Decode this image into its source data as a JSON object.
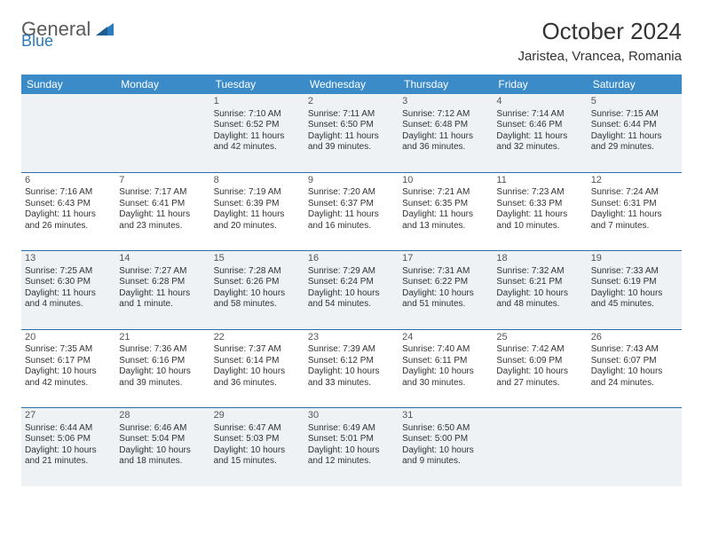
{
  "brand": {
    "main": "General",
    "sub": "Blue"
  },
  "title": "October 2024",
  "location": "Jaristea, Vrancea, Romania",
  "colors": {
    "header_bg": "#3b8bc9",
    "header_text": "#ffffff",
    "divider": "#2b6fa8",
    "shade_bg": "#eef2f5",
    "text": "#333333",
    "brand_main": "#5a5a5a",
    "brand_sub": "#2b7bbf"
  },
  "dows": [
    "Sunday",
    "Monday",
    "Tuesday",
    "Wednesday",
    "Thursday",
    "Friday",
    "Saturday"
  ],
  "weeks": [
    [
      null,
      null,
      {
        "n": "1",
        "sr": "Sunrise: 7:10 AM",
        "ss": "Sunset: 6:52 PM",
        "d1": "Daylight: 11 hours",
        "d2": "and 42 minutes."
      },
      {
        "n": "2",
        "sr": "Sunrise: 7:11 AM",
        "ss": "Sunset: 6:50 PM",
        "d1": "Daylight: 11 hours",
        "d2": "and 39 minutes."
      },
      {
        "n": "3",
        "sr": "Sunrise: 7:12 AM",
        "ss": "Sunset: 6:48 PM",
        "d1": "Daylight: 11 hours",
        "d2": "and 36 minutes."
      },
      {
        "n": "4",
        "sr": "Sunrise: 7:14 AM",
        "ss": "Sunset: 6:46 PM",
        "d1": "Daylight: 11 hours",
        "d2": "and 32 minutes."
      },
      {
        "n": "5",
        "sr": "Sunrise: 7:15 AM",
        "ss": "Sunset: 6:44 PM",
        "d1": "Daylight: 11 hours",
        "d2": "and 29 minutes."
      }
    ],
    [
      {
        "n": "6",
        "sr": "Sunrise: 7:16 AM",
        "ss": "Sunset: 6:43 PM",
        "d1": "Daylight: 11 hours",
        "d2": "and 26 minutes."
      },
      {
        "n": "7",
        "sr": "Sunrise: 7:17 AM",
        "ss": "Sunset: 6:41 PM",
        "d1": "Daylight: 11 hours",
        "d2": "and 23 minutes."
      },
      {
        "n": "8",
        "sr": "Sunrise: 7:19 AM",
        "ss": "Sunset: 6:39 PM",
        "d1": "Daylight: 11 hours",
        "d2": "and 20 minutes."
      },
      {
        "n": "9",
        "sr": "Sunrise: 7:20 AM",
        "ss": "Sunset: 6:37 PM",
        "d1": "Daylight: 11 hours",
        "d2": "and 16 minutes."
      },
      {
        "n": "10",
        "sr": "Sunrise: 7:21 AM",
        "ss": "Sunset: 6:35 PM",
        "d1": "Daylight: 11 hours",
        "d2": "and 13 minutes."
      },
      {
        "n": "11",
        "sr": "Sunrise: 7:23 AM",
        "ss": "Sunset: 6:33 PM",
        "d1": "Daylight: 11 hours",
        "d2": "and 10 minutes."
      },
      {
        "n": "12",
        "sr": "Sunrise: 7:24 AM",
        "ss": "Sunset: 6:31 PM",
        "d1": "Daylight: 11 hours",
        "d2": "and 7 minutes."
      }
    ],
    [
      {
        "n": "13",
        "sr": "Sunrise: 7:25 AM",
        "ss": "Sunset: 6:30 PM",
        "d1": "Daylight: 11 hours",
        "d2": "and 4 minutes."
      },
      {
        "n": "14",
        "sr": "Sunrise: 7:27 AM",
        "ss": "Sunset: 6:28 PM",
        "d1": "Daylight: 11 hours",
        "d2": "and 1 minute."
      },
      {
        "n": "15",
        "sr": "Sunrise: 7:28 AM",
        "ss": "Sunset: 6:26 PM",
        "d1": "Daylight: 10 hours",
        "d2": "and 58 minutes."
      },
      {
        "n": "16",
        "sr": "Sunrise: 7:29 AM",
        "ss": "Sunset: 6:24 PM",
        "d1": "Daylight: 10 hours",
        "d2": "and 54 minutes."
      },
      {
        "n": "17",
        "sr": "Sunrise: 7:31 AM",
        "ss": "Sunset: 6:22 PM",
        "d1": "Daylight: 10 hours",
        "d2": "and 51 minutes."
      },
      {
        "n": "18",
        "sr": "Sunrise: 7:32 AM",
        "ss": "Sunset: 6:21 PM",
        "d1": "Daylight: 10 hours",
        "d2": "and 48 minutes."
      },
      {
        "n": "19",
        "sr": "Sunrise: 7:33 AM",
        "ss": "Sunset: 6:19 PM",
        "d1": "Daylight: 10 hours",
        "d2": "and 45 minutes."
      }
    ],
    [
      {
        "n": "20",
        "sr": "Sunrise: 7:35 AM",
        "ss": "Sunset: 6:17 PM",
        "d1": "Daylight: 10 hours",
        "d2": "and 42 minutes."
      },
      {
        "n": "21",
        "sr": "Sunrise: 7:36 AM",
        "ss": "Sunset: 6:16 PM",
        "d1": "Daylight: 10 hours",
        "d2": "and 39 minutes."
      },
      {
        "n": "22",
        "sr": "Sunrise: 7:37 AM",
        "ss": "Sunset: 6:14 PM",
        "d1": "Daylight: 10 hours",
        "d2": "and 36 minutes."
      },
      {
        "n": "23",
        "sr": "Sunrise: 7:39 AM",
        "ss": "Sunset: 6:12 PM",
        "d1": "Daylight: 10 hours",
        "d2": "and 33 minutes."
      },
      {
        "n": "24",
        "sr": "Sunrise: 7:40 AM",
        "ss": "Sunset: 6:11 PM",
        "d1": "Daylight: 10 hours",
        "d2": "and 30 minutes."
      },
      {
        "n": "25",
        "sr": "Sunrise: 7:42 AM",
        "ss": "Sunset: 6:09 PM",
        "d1": "Daylight: 10 hours",
        "d2": "and 27 minutes."
      },
      {
        "n": "26",
        "sr": "Sunrise: 7:43 AM",
        "ss": "Sunset: 6:07 PM",
        "d1": "Daylight: 10 hours",
        "d2": "and 24 minutes."
      }
    ],
    [
      {
        "n": "27",
        "sr": "Sunrise: 6:44 AM",
        "ss": "Sunset: 5:06 PM",
        "d1": "Daylight: 10 hours",
        "d2": "and 21 minutes."
      },
      {
        "n": "28",
        "sr": "Sunrise: 6:46 AM",
        "ss": "Sunset: 5:04 PM",
        "d1": "Daylight: 10 hours",
        "d2": "and 18 minutes."
      },
      {
        "n": "29",
        "sr": "Sunrise: 6:47 AM",
        "ss": "Sunset: 5:03 PM",
        "d1": "Daylight: 10 hours",
        "d2": "and 15 minutes."
      },
      {
        "n": "30",
        "sr": "Sunrise: 6:49 AM",
        "ss": "Sunset: 5:01 PM",
        "d1": "Daylight: 10 hours",
        "d2": "and 12 minutes."
      },
      {
        "n": "31",
        "sr": "Sunrise: 6:50 AM",
        "ss": "Sunset: 5:00 PM",
        "d1": "Daylight: 10 hours",
        "d2": "and 9 minutes."
      },
      null,
      null
    ]
  ],
  "shaded_rows": [
    0,
    2,
    4
  ]
}
